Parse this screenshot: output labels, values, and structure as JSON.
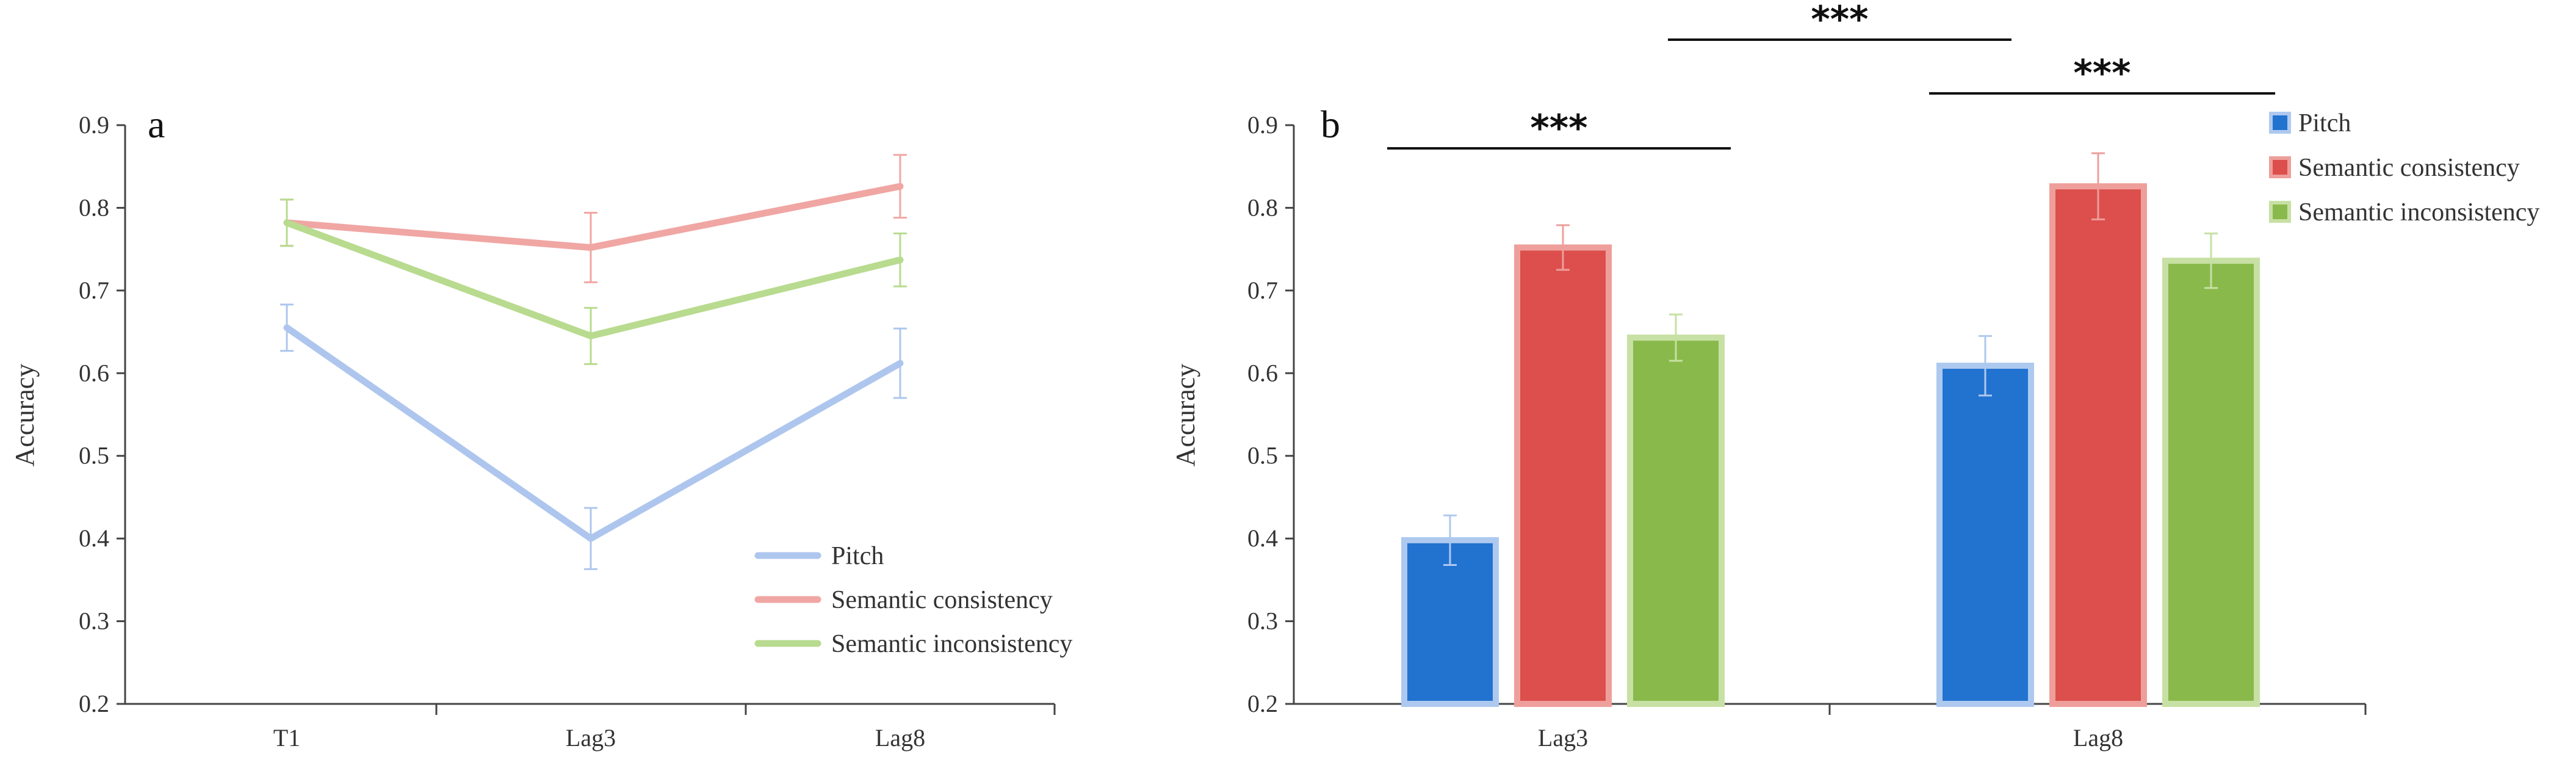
{
  "chart_data": [
    {
      "type": "line",
      "panel_label": "a",
      "categories": [
        "T1",
        "Lag3",
        "Lag8"
      ],
      "ylabel": "Accuracy",
      "ylim": [
        0.2,
        0.9
      ],
      "yticks": [
        "0.2",
        "0.3",
        "0.4",
        "0.5",
        "0.6",
        "0.7",
        "0.8",
        "0.9"
      ],
      "legend_position": "bottom-right",
      "series": [
        {
          "name": "Pitch",
          "color": "#aec6ee",
          "values": [
            0.655,
            0.4,
            0.612
          ],
          "errors": [
            0.028,
            0.037,
            0.042
          ]
        },
        {
          "name": "Semantic consistency",
          "color": "#f0a6a3",
          "values": [
            0.782,
            0.752,
            0.826
          ],
          "errors": [
            0.028,
            0.042,
            0.038
          ]
        },
        {
          "name": "Semantic inconsistency",
          "color": "#b8db8f",
          "values": [
            0.782,
            0.645,
            0.737
          ],
          "errors": [
            0.028,
            0.034,
            0.032
          ]
        }
      ]
    },
    {
      "type": "bar",
      "panel_label": "b",
      "categories": [
        "Lag3",
        "Lag8"
      ],
      "ylabel": "Accuracy",
      "ylim": [
        0.2,
        0.9
      ],
      "yticks": [
        "0.2",
        "0.3",
        "0.4",
        "0.5",
        "0.6",
        "0.7",
        "0.8",
        "0.9"
      ],
      "legend_position": "top-right",
      "series": [
        {
          "name": "Pitch",
          "color": "#2272d0",
          "edge": "#aec9ef",
          "values": [
            0.398,
            0.609
          ],
          "errors": [
            0.03,
            0.036
          ]
        },
        {
          "name": "Semantic consistency",
          "color": "#dc4f4c",
          "edge": "#ee9f9b",
          "values": [
            0.752,
            0.826
          ],
          "errors": [
            0.027,
            0.04
          ]
        },
        {
          "name": "Semantic inconsistency",
          "color": "#8ab94b",
          "edge": "#c7e0a4",
          "values": [
            0.643,
            0.736
          ],
          "errors": [
            0.028,
            0.033
          ]
        }
      ],
      "significance": [
        {
          "label": "***",
          "between": "Lag3 Pitch vs Semantic inconsistency"
        },
        {
          "label": "***",
          "between": "Lag8 Pitch vs Semantic inconsistency"
        },
        {
          "label": "***",
          "between": "Lag3 vs Lag8"
        }
      ]
    }
  ]
}
